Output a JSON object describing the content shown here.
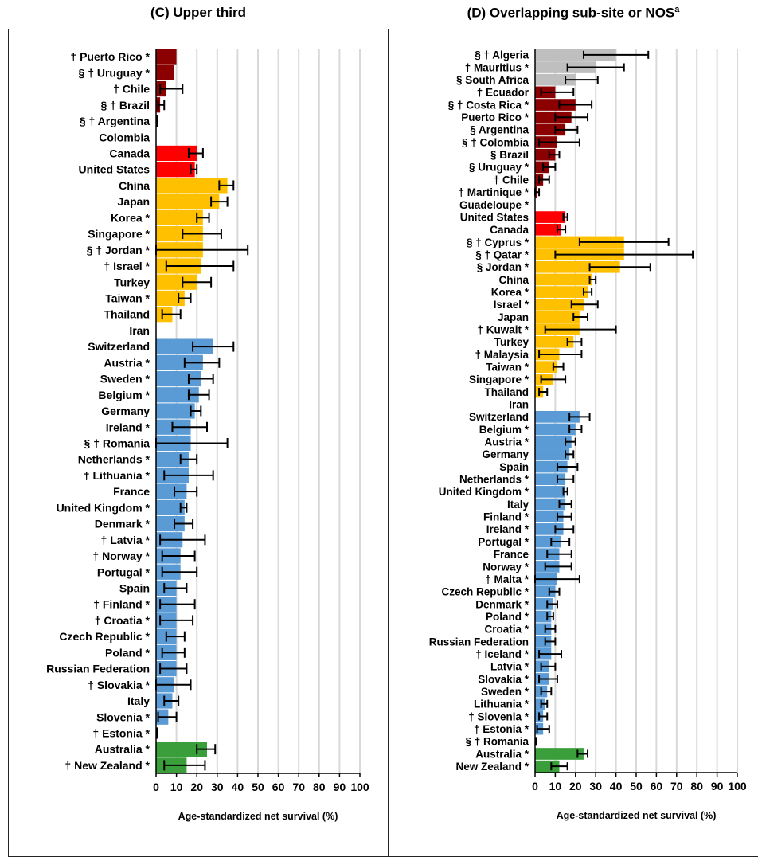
{
  "colors": {
    "grey": "#bfbfbf",
    "darkred": "#8b0000",
    "red": "#ff0000",
    "orange": "#ffc000",
    "blue": "#5b9bd5",
    "green": "#3a9e3a"
  },
  "axis": {
    "ticks": [
      "0",
      "10",
      "20",
      "30",
      "40",
      "50",
      "60",
      "70",
      "80",
      "90",
      "100"
    ],
    "xlabel": "Age-standardized net survival (%)",
    "xlim": [
      0,
      100
    ]
  },
  "panel_c": {
    "title": "(C) Upper third",
    "chart_data": {
      "type": "bar",
      "orientation": "horizontal",
      "title": "(C) Upper third",
      "xlabel": "Age-standardized net survival (%)",
      "xlim": [
        0,
        100
      ],
      "grid": "vertical",
      "categories": [
        "† Puerto Rico *",
        "§ † Uruguay *",
        "† Chile",
        "§ † Brazil",
        "§ † Argentina",
        "Colombia",
        "Canada",
        "United States",
        "China",
        "Japan",
        "Korea *",
        "Singapore *",
        "§ † Jordan *",
        "† Israel *",
        "Turkey",
        "Taiwan *",
        "Thailand",
        "Iran",
        "Switzerland",
        "Austria *",
        "Sweden *",
        "Belgium *",
        "Germany",
        "Ireland *",
        "§ † Romania",
        "Netherlands *",
        "† Lithuania *",
        "France",
        "United Kingdom *",
        "Denmark *",
        "† Latvia *",
        "† Norway *",
        "Portugal *",
        "Spain",
        "† Finland *",
        "† Croatia *",
        "Czech Republic *",
        "Poland *",
        "Russian Federation",
        "† Slovakia *",
        "Italy",
        "Slovenia *",
        "† Estonia *",
        "Australia *",
        "† New Zealand *"
      ],
      "values": [
        10,
        9,
        5,
        2,
        0,
        null,
        20,
        19,
        35,
        31,
        23,
        23,
        23,
        22,
        20,
        14,
        8,
        null,
        28,
        23,
        22,
        21,
        19,
        17,
        17,
        16,
        16,
        15,
        14,
        14,
        13,
        12,
        12,
        10,
        10,
        10,
        10,
        10,
        10,
        9,
        8,
        6,
        0,
        25,
        15
      ],
      "ci_low": [
        null,
        null,
        2,
        1,
        null,
        null,
        16,
        17,
        31,
        27,
        20,
        13,
        0,
        5,
        13,
        11,
        3,
        null,
        18,
        14,
        16,
        16,
        17,
        8,
        0,
        12,
        4,
        9,
        12,
        9,
        2,
        3,
        3,
        4,
        2,
        2,
        5,
        3,
        2,
        0,
        4,
        1,
        null,
        20,
        4
      ],
      "ci_high": [
        20,
        19,
        13,
        4,
        null,
        null,
        23,
        20,
        38,
        35,
        26,
        32,
        45,
        38,
        27,
        17,
        12,
        null,
        38,
        31,
        28,
        26,
        22,
        25,
        35,
        20,
        28,
        20,
        15,
        18,
        24,
        19,
        20,
        15,
        19,
        18,
        14,
        14,
        15,
        17,
        11,
        10,
        null,
        29,
        24
      ],
      "colors": [
        "darkred",
        "darkred",
        "darkred",
        "darkred",
        "darkred",
        "darkred",
        "red",
        "red",
        "orange",
        "orange",
        "orange",
        "orange",
        "orange",
        "orange",
        "orange",
        "orange",
        "orange",
        "orange",
        "blue",
        "blue",
        "blue",
        "blue",
        "blue",
        "blue",
        "blue",
        "blue",
        "blue",
        "blue",
        "blue",
        "blue",
        "blue",
        "blue",
        "blue",
        "blue",
        "blue",
        "blue",
        "blue",
        "blue",
        "blue",
        "blue",
        "blue",
        "blue",
        "blue",
        "green",
        "green"
      ]
    }
  },
  "panel_d": {
    "title": "(D) Overlapping sub-site or NOS",
    "title_sup": "a",
    "chart_data": {
      "type": "bar",
      "orientation": "horizontal",
      "title": "(D) Overlapping sub-site or NOSa",
      "xlabel": "Age-standardized net survival (%)",
      "xlim": [
        0,
        100
      ],
      "grid": "vertical",
      "categories": [
        "§ † Algeria",
        "† Mauritius *",
        "§ South Africa",
        "† Ecuador",
        "§ † Costa Rica *",
        "Puerto Rico *",
        "§ Argentina",
        "§ † Colombia",
        "§ Brazil",
        "§ Uruguay *",
        "† Chile",
        "† Martinique *",
        "Guadeloupe *",
        "United States",
        "Canada",
        "§ † Cyprus *",
        "§ † Qatar *",
        "§ Jordan *",
        "China",
        "Korea *",
        "Israel *",
        "Japan",
        "† Kuwait *",
        "Turkey",
        "† Malaysia",
        "Taiwan *",
        "Singapore *",
        "Thailand",
        "Iran",
        "Switzerland",
        "Belgium *",
        "Austria *",
        "Germany",
        "Spain",
        "Netherlands *",
        "United Kingdom *",
        "Italy",
        "Finland *",
        "Ireland *",
        "Portugal *",
        "France",
        "Norway *",
        "† Malta *",
        "Czech Republic *",
        "Denmark *",
        "Poland *",
        "Croatia *",
        "Russian Federation",
        "† Iceland *",
        "Latvia *",
        "Slovakia *",
        "Sweden *",
        "Lithuania *",
        "† Slovenia *",
        "† Estonia *",
        "§ † Romania",
        "Australia *",
        "New Zealand *"
      ],
      "values": [
        40,
        30,
        20,
        10,
        20,
        18,
        15,
        11,
        10,
        7,
        4,
        1,
        null,
        15,
        13,
        44,
        44,
        42,
        28,
        26,
        24,
        22,
        22,
        19,
        12,
        11,
        9,
        4,
        null,
        22,
        20,
        18,
        17,
        16,
        15,
        15,
        15,
        14,
        14,
        13,
        12,
        12,
        11,
        10,
        9,
        8,
        8,
        8,
        8,
        7,
        7,
        6,
        5,
        4,
        4,
        0,
        24,
        12
      ],
      "ci_low": [
        24,
        16,
        15,
        3,
        12,
        10,
        10,
        2,
        7,
        4,
        2,
        0,
        null,
        14,
        11,
        22,
        10,
        27,
        27,
        24,
        18,
        19,
        5,
        16,
        2,
        9,
        3,
        2,
        null,
        17,
        17,
        15,
        15,
        11,
        11,
        14,
        12,
        11,
        10,
        8,
        6,
        5,
        0,
        7,
        6,
        6,
        5,
        5,
        2,
        3,
        2,
        3,
        3,
        2,
        1,
        null,
        21,
        8
      ],
      "ci_high": [
        56,
        44,
        31,
        19,
        28,
        26,
        21,
        22,
        12,
        10,
        7,
        2,
        null,
        16,
        15,
        66,
        78,
        57,
        30,
        28,
        31,
        26,
        40,
        23,
        23,
        14,
        15,
        6,
        null,
        27,
        23,
        20,
        19,
        21,
        19,
        16,
        18,
        18,
        19,
        17,
        18,
        18,
        22,
        12,
        11,
        9,
        10,
        10,
        13,
        10,
        11,
        8,
        6,
        6,
        7,
        null,
        26,
        16
      ],
      "colors": [
        "grey",
        "grey",
        "grey",
        "darkred",
        "darkred",
        "darkred",
        "darkred",
        "darkred",
        "darkred",
        "darkred",
        "darkred",
        "darkred",
        "darkred",
        "red",
        "red",
        "orange",
        "orange",
        "orange",
        "orange",
        "orange",
        "orange",
        "orange",
        "orange",
        "orange",
        "orange",
        "orange",
        "orange",
        "orange",
        "orange",
        "blue",
        "blue",
        "blue",
        "blue",
        "blue",
        "blue",
        "blue",
        "blue",
        "blue",
        "blue",
        "blue",
        "blue",
        "blue",
        "blue",
        "blue",
        "blue",
        "blue",
        "blue",
        "blue",
        "blue",
        "blue",
        "blue",
        "blue",
        "blue",
        "blue",
        "blue",
        "blue",
        "green",
        "green"
      ]
    }
  }
}
